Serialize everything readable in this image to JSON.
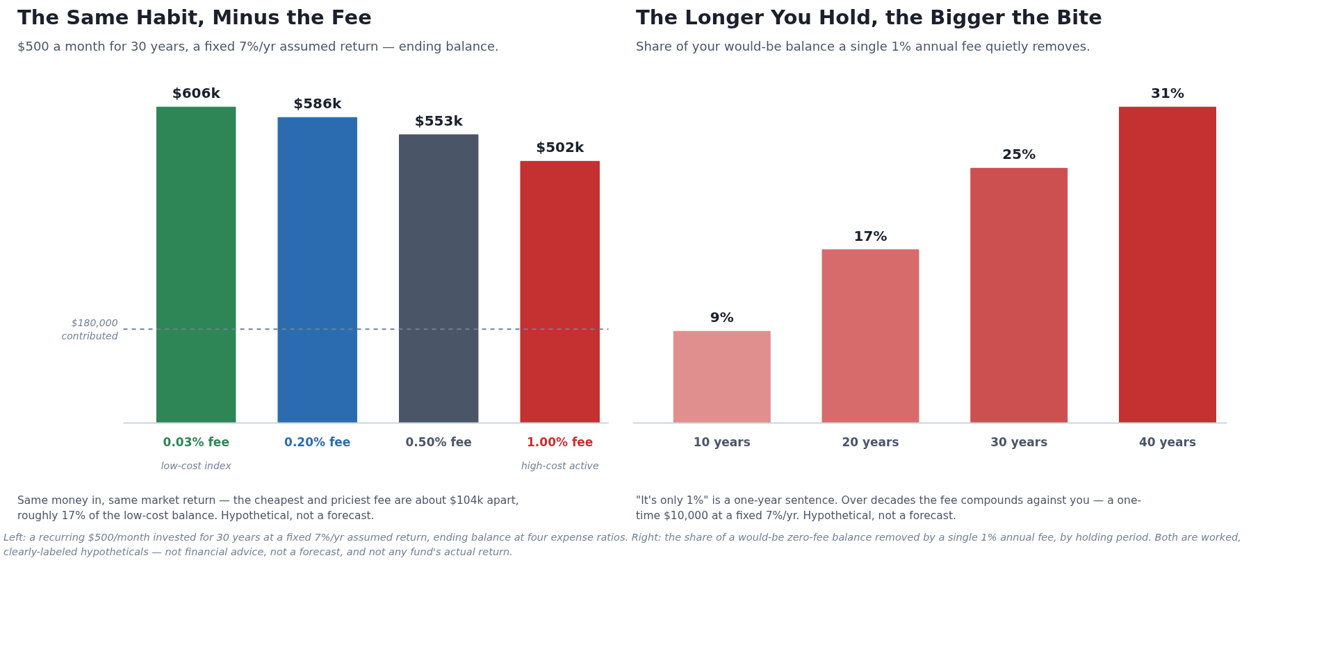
{
  "chart_data": [
    {
      "type": "bar",
      "title": "The Same Habit, Minus the Fee",
      "subtitle": "$500 a month for 30 years, a fixed 7%/yr assumed return — ending balance.",
      "categories": [
        "0.03% fee",
        "0.20% fee",
        "0.50% fee",
        "1.00% fee"
      ],
      "values": [
        606,
        586,
        553,
        502
      ],
      "value_labels": [
        "$606k",
        "$586k",
        "$553k",
        "$502k"
      ],
      "colors": [
        "#2e8555",
        "#2b6cb0",
        "#4a5568",
        "#c53030"
      ],
      "ref_lines": [
        {
          "axis": "y",
          "value": 180,
          "label": "$180,000\ncontributed",
          "color": "#718096",
          "line_style": "dashed"
        }
      ],
      "annotations": [
        "low-cost index",
        "high-cost active",
        "Same money in, same market return — the cheapest and priciest fee are about $104k apart, roughly 17% of the low-cost balance. Hypothetical, not a forecast."
      ],
      "grid": false
    },
    {
      "type": "bar",
      "title": "The Longer You Hold, the Bigger the Bite",
      "subtitle": "Share of your would-be balance a single 1% annual fee quietly removes.",
      "categories": [
        "10 years",
        "20 years",
        "30 years",
        "40 years"
      ],
      "values": [
        9,
        17,
        25,
        31
      ],
      "value_labels": [
        "9%",
        "17%",
        "25%",
        "31%"
      ],
      "colors": [
        "#e08e8e",
        "#d76b6b",
        "#cc5050",
        "#c53030"
      ],
      "annotations": [
        "\"It's only 1%\" is a one-year sentence. Over decades the fee compounds against you — a one-time $10,000 at a fixed 7%/yr. Hypothetical, not a forecast.",
        "Left: a recurring $500/month invested for 30 years at a fixed 7%/yr assumed return, ending balance at four expense ratios. Right: the share of a would-be zero-fee balance removed by a single 1% annual fee, by holding period. Both are worked, clearly-labeled hypotheticals — not financial advice, not a forecast, and not any fund's actual return."
      ],
      "grid": false
    }
  ]
}
